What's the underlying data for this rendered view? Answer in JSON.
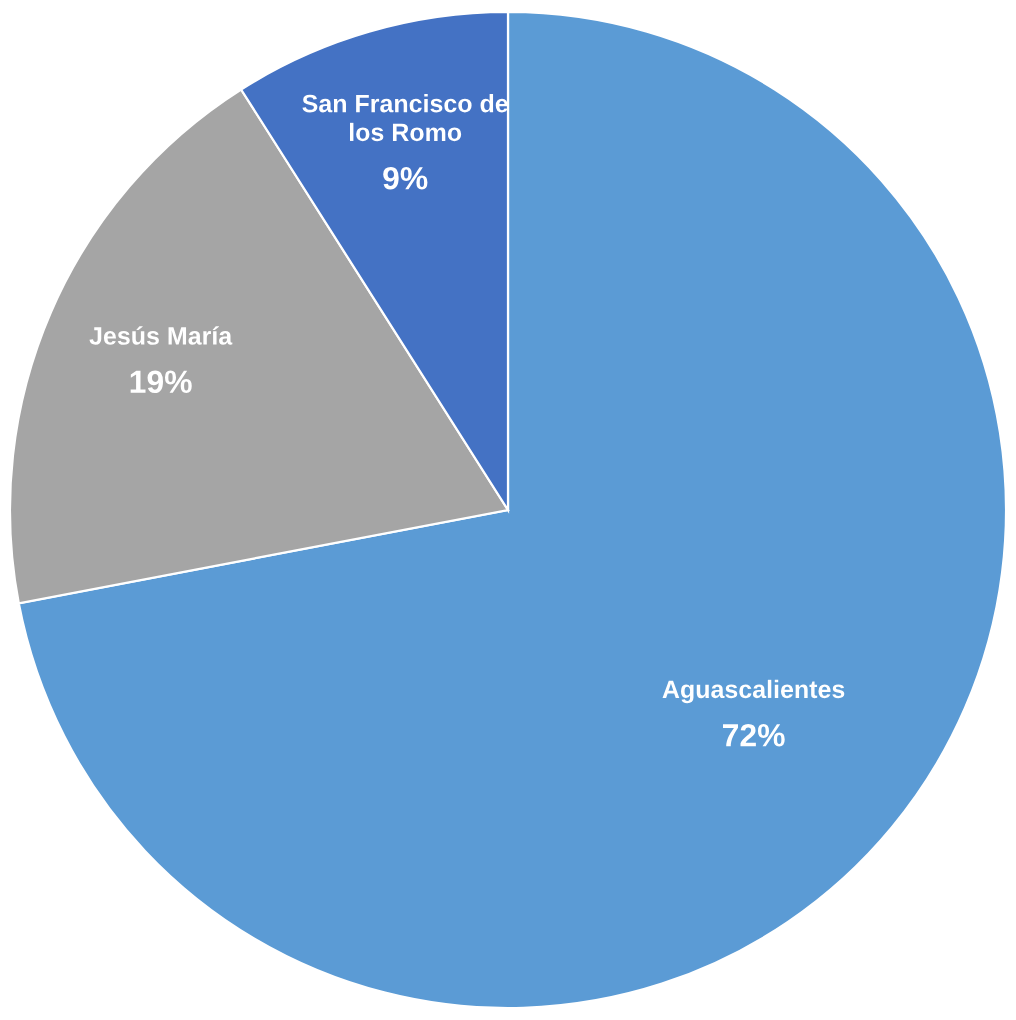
{
  "chart_data": {
    "type": "pie",
    "categories": [
      "Aguascalientes",
      "Jesús María",
      "San Francisco de\nlos Romo"
    ],
    "values": [
      72,
      19,
      9
    ],
    "colors": [
      "#5b9bd5",
      "#a5a5a5",
      "#4472c4"
    ],
    "value_labels": [
      "72%",
      "19%",
      "9%"
    ]
  }
}
